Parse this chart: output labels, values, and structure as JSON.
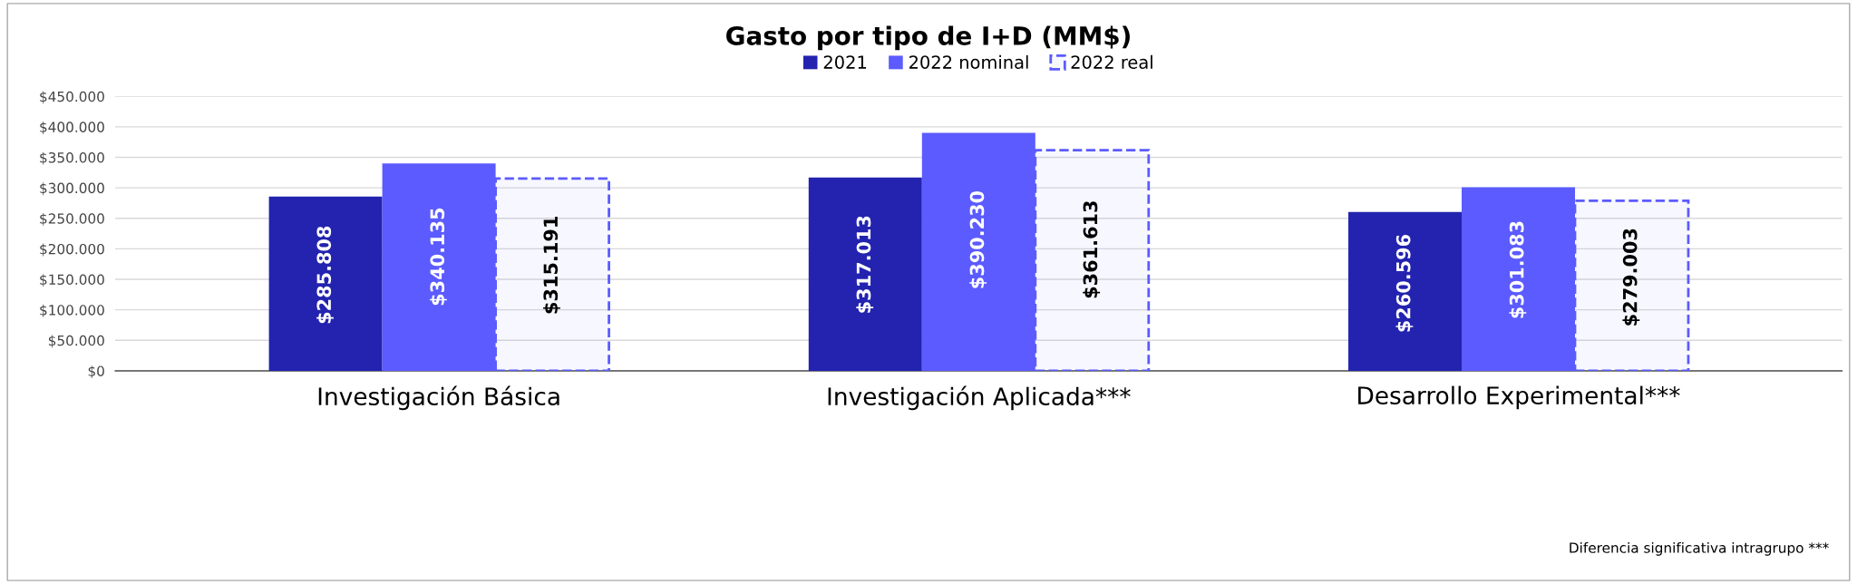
{
  "chart_data": {
    "type": "bar",
    "title": "Gasto por tipo de I+D (MM$)",
    "categories": [
      "Investigación Básica",
      "Investigación Aplicada***",
      "Desarrollo Experimental***"
    ],
    "series": [
      {
        "name": "2021",
        "color": "#2323b0",
        "values": [
          285808,
          317013,
          260596
        ],
        "value_labels": [
          "$285.808",
          "$317.013",
          "$260.596"
        ]
      },
      {
        "name": "2022 nominal",
        "color": "#5b5bff",
        "values": [
          340135,
          390230,
          301083
        ],
        "value_labels": [
          "$340.135",
          "$390.230",
          "$301.083"
        ]
      },
      {
        "name": "2022 real",
        "color": "#5b5bff",
        "line_style": "dashed",
        "values": [
          315191,
          361613,
          279003
        ],
        "value_labels": [
          "$315.191",
          "$361.613",
          "$279.003"
        ]
      }
    ],
    "ylim": [
      0,
      450000
    ],
    "yticks": [
      {
        "value": 0,
        "label": "$0"
      },
      {
        "value": 50000,
        "label": "$50.000"
      },
      {
        "value": 100000,
        "label": "$100.000"
      },
      {
        "value": 150000,
        "label": "$150.000"
      },
      {
        "value": 200000,
        "label": "$200.000"
      },
      {
        "value": 250000,
        "label": "$250.000"
      },
      {
        "value": 300000,
        "label": "$300.000"
      },
      {
        "value": 350000,
        "label": "$350.000"
      },
      {
        "value": 400000,
        "label": "$400.000"
      },
      {
        "value": 450000,
        "label": "$450.000"
      }
    ],
    "grid": "y",
    "legend": "top",
    "annotations": [
      "Diferencia significativa intragrupo ***"
    ]
  }
}
